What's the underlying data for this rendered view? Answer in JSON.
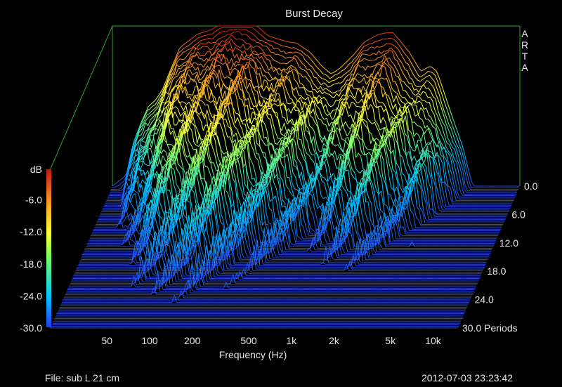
{
  "chart_data": {
    "type": "waterfall-3d",
    "title": "Burst Decay",
    "xlabel": "Frequency (Hz)",
    "x_scale": "log",
    "x_range_hz": [
      20,
      15000
    ],
    "x_ticks": [
      {
        "value": 50,
        "label": "50"
      },
      {
        "value": 100,
        "label": "100"
      },
      {
        "value": 200,
        "label": "200"
      },
      {
        "value": 500,
        "label": "500"
      },
      {
        "value": 1000,
        "label": "1k"
      },
      {
        "value": 2000,
        "label": "2k"
      },
      {
        "value": 5000,
        "label": "5k"
      },
      {
        "value": 10000,
        "label": "10k"
      }
    ],
    "depth_ticks": [
      {
        "value": 0,
        "label": "0.0"
      },
      {
        "value": 6,
        "label": "6.0"
      },
      {
        "value": 12,
        "label": "12.0"
      },
      {
        "value": 18,
        "label": "18.0"
      },
      {
        "value": 24,
        "label": "24.0"
      },
      {
        "value": 30,
        "label": "30.0 Periods"
      }
    ],
    "z_unit": "dB",
    "z_range_db": [
      -30,
      0
    ],
    "z_ticks": [
      {
        "value": -6,
        "label": "-6.0"
      },
      {
        "value": -12,
        "label": "-12.0"
      },
      {
        "value": -18,
        "label": "-18.0"
      },
      {
        "value": -24,
        "label": "-24.0"
      },
      {
        "value": -30,
        "label": "-30.0"
      }
    ],
    "brand": "ARTA",
    "periods_range": [
      0,
      30
    ],
    "slices": 90,
    "initial_response": {
      "freq_hz": [
        20,
        25,
        28,
        32,
        36,
        40,
        45,
        50,
        60,
        80,
        100,
        120,
        150,
        175,
        200,
        250,
        300,
        350,
        400,
        500,
        600,
        700,
        800,
        1000,
        1200,
        1500,
        1700,
        1900,
        2100,
        2500,
        3000,
        3500,
        3900,
        4200,
        5000,
        6000,
        6500,
        7000,
        15000
      ],
      "level_db": [
        -30,
        -28,
        -22,
        -18,
        -15,
        -14,
        -12,
        -9,
        -4,
        -1.5,
        -0.7,
        0.7,
        1,
        1.3,
        0.5,
        -1.8,
        -2.5,
        -3,
        -3.2,
        -5,
        -7.5,
        -9,
        -8,
        -5.5,
        -3,
        -1.6,
        -1.3,
        -1.2,
        -2.5,
        -5,
        -8.5,
        -7.5,
        -8.5,
        -11,
        -17,
        -23,
        -27,
        -30,
        -30
      ]
    }
  },
  "footer": {
    "file": "File: sub L 21 cm",
    "timestamp": "2012-07-03  23:23:42"
  },
  "colors": {
    "background": "#000000",
    "frame": "#2f9f2f",
    "text": "#e6e6e6",
    "floor_line": "#3c64d6"
  }
}
